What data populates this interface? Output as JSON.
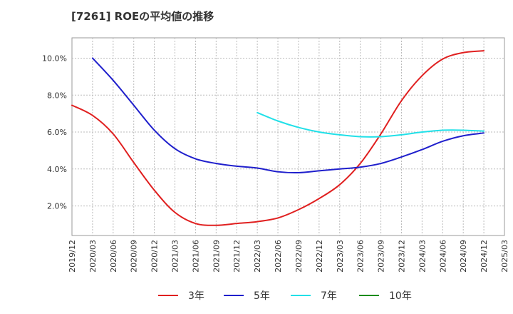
{
  "chart_data": {
    "type": "line",
    "title": "[7261]  ROEの平均値の推移",
    "xlabel": "",
    "ylabel": "",
    "ylim": [
      0.4,
      11.1
    ],
    "yticks": [
      2.0,
      4.0,
      6.0,
      8.0,
      10.0
    ],
    "ytick_labels": [
      "2.0%",
      "4.0%",
      "6.0%",
      "8.0%",
      "10.0%"
    ],
    "x_start": "2019/12",
    "x_end": "2025/03",
    "x_tick_labels": [
      "2019/12",
      "2020/03",
      "2020/06",
      "2020/09",
      "2020/12",
      "2021/03",
      "2021/06",
      "2021/09",
      "2021/12",
      "2022/03",
      "2022/06",
      "2022/09",
      "2022/12",
      "2023/03",
      "2023/06",
      "2023/09",
      "2023/12",
      "2024/03",
      "2024/06",
      "2024/09",
      "2024/12",
      "2025/03"
    ],
    "grid": true,
    "legend_position": "bottom",
    "series": [
      {
        "name": "3年",
        "color": "#e02020",
        "points": [
          [
            "2019/12",
            7.45
          ],
          [
            "2020/03",
            6.9
          ],
          [
            "2020/06",
            5.9
          ],
          [
            "2020/09",
            4.35
          ],
          [
            "2020/12",
            2.85
          ],
          [
            "2021/03",
            1.65
          ],
          [
            "2021/06",
            1.05
          ],
          [
            "2021/09",
            0.95
          ],
          [
            "2021/12",
            1.05
          ],
          [
            "2022/03",
            1.15
          ],
          [
            "2022/06",
            1.35
          ],
          [
            "2022/09",
            1.8
          ],
          [
            "2022/12",
            2.4
          ],
          [
            "2023/03",
            3.15
          ],
          [
            "2023/06",
            4.3
          ],
          [
            "2023/09",
            5.9
          ],
          [
            "2023/12",
            7.7
          ],
          [
            "2024/03",
            9.05
          ],
          [
            "2024/06",
            9.95
          ],
          [
            "2024/09",
            10.3
          ],
          [
            "2024/12",
            10.4
          ]
        ]
      },
      {
        "name": "5年",
        "color": "#1f1fcc",
        "points": [
          [
            "2020/03",
            10.0
          ],
          [
            "2020/06",
            8.8
          ],
          [
            "2020/09",
            7.45
          ],
          [
            "2020/12",
            6.1
          ],
          [
            "2021/03",
            5.1
          ],
          [
            "2021/06",
            4.55
          ],
          [
            "2021/09",
            4.3
          ],
          [
            "2021/12",
            4.15
          ],
          [
            "2022/03",
            4.05
          ],
          [
            "2022/06",
            3.85
          ],
          [
            "2022/09",
            3.8
          ],
          [
            "2022/12",
            3.9
          ],
          [
            "2023/03",
            4.0
          ],
          [
            "2023/06",
            4.1
          ],
          [
            "2023/09",
            4.3
          ],
          [
            "2023/12",
            4.65
          ],
          [
            "2024/03",
            5.05
          ],
          [
            "2024/06",
            5.5
          ],
          [
            "2024/09",
            5.8
          ],
          [
            "2024/12",
            5.95
          ]
        ]
      },
      {
        "name": "7年",
        "color": "#22e0e8",
        "points": [
          [
            "2022/03",
            7.05
          ],
          [
            "2022/06",
            6.6
          ],
          [
            "2022/09",
            6.25
          ],
          [
            "2022/12",
            6.0
          ],
          [
            "2023/03",
            5.85
          ],
          [
            "2023/06",
            5.75
          ],
          [
            "2023/09",
            5.75
          ],
          [
            "2023/12",
            5.85
          ],
          [
            "2024/03",
            6.0
          ],
          [
            "2024/06",
            6.1
          ],
          [
            "2024/09",
            6.1
          ],
          [
            "2024/12",
            6.05
          ]
        ]
      },
      {
        "name": "10年",
        "color": "#1a8c1a",
        "points": []
      }
    ]
  }
}
